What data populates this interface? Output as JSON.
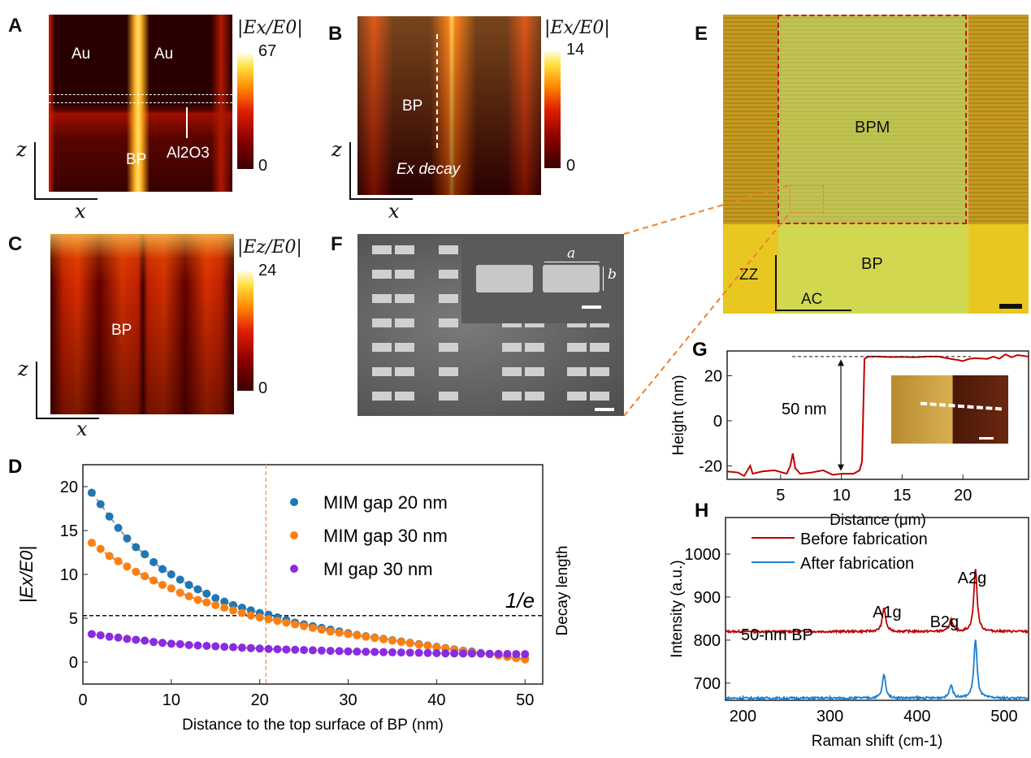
{
  "panels": {
    "A": {
      "letter": "A",
      "colorbar_title": "|Ex/E0|",
      "colorbar_max": "67",
      "colorbar_min": "0",
      "labels": {
        "au_left": "Au",
        "au_right": "Au",
        "bp": "BP",
        "oxide": "Al2O3"
      },
      "axis_z": "z",
      "axis_x": "x"
    },
    "B": {
      "letter": "B",
      "colorbar_title": "|Ex/E0|",
      "colorbar_max": "14",
      "colorbar_min": "0",
      "labels": {
        "bp": "BP",
        "decay": "Ex decay"
      },
      "axis_z": "z",
      "axis_x": "x"
    },
    "C": {
      "letter": "C",
      "colorbar_title": "|Ez/E0|",
      "colorbar_max": "24",
      "colorbar_min": "0",
      "labels": {
        "bp": "BP"
      },
      "axis_z": "z",
      "axis_x": "x"
    },
    "E": {
      "letter": "E",
      "labels": {
        "bpm": "BPM",
        "bp": "BP",
        "zz": "ZZ",
        "ac": "AC"
      }
    },
    "F": {
      "letter": "F",
      "labels": {
        "a": "a",
        "b": "b"
      }
    },
    "D": {
      "letter": "D"
    },
    "G": {
      "letter": "G"
    },
    "H": {
      "letter": "H"
    }
  },
  "colors": {
    "blue": "#1f77b4",
    "orange": "#ff7f0e",
    "purple": "#8a2be2",
    "red": "#c00000",
    "raman_blue": "#1a7fd0",
    "dashed_orange": "#f08030",
    "dashed_red": "#d01020"
  },
  "chart_data": [
    {
      "id": "D",
      "type": "scatter",
      "xlabel": "Distance to the top surface of BP (nm)",
      "ylabel": "|Ex/E0|",
      "right_label": "Decay length",
      "xlim": [
        0,
        52
      ],
      "ylim": [
        -2.5,
        22.5
      ],
      "xticks": [
        0,
        10,
        20,
        30,
        40,
        50
      ],
      "yticks": [
        0,
        5,
        10,
        15,
        20
      ],
      "legend_position": "top-right",
      "annotation": "1/e",
      "hline": 5.3,
      "vline": 20.7,
      "x": [
        1,
        2,
        3,
        4,
        5,
        6,
        7,
        8,
        9,
        10,
        11,
        12,
        13,
        14,
        15,
        16,
        17,
        18,
        19,
        20,
        21,
        22,
        23,
        24,
        25,
        26,
        27,
        28,
        29,
        30,
        31,
        32,
        33,
        34,
        35,
        36,
        37,
        38,
        39,
        40,
        41,
        42,
        43,
        44,
        45,
        46,
        47,
        48,
        49,
        50
      ],
      "series": [
        {
          "name": "MIM gap 20 nm",
          "color": "#1f77b4",
          "values": [
            19.3,
            18,
            16.6,
            15.3,
            14.1,
            13.1,
            12.3,
            11.4,
            10.6,
            10,
            9.4,
            8.8,
            8.3,
            7.8,
            7.3,
            6.9,
            6.5,
            6.2,
            5.9,
            5.6,
            5.4,
            5.1,
            4.8,
            4.5,
            4.3,
            4.1,
            3.9,
            3.7,
            3.5,
            3.3,
            3.1,
            2.95,
            2.8,
            2.65,
            2.5,
            2.35,
            2.2,
            2.05,
            1.9,
            1.75,
            1.6,
            1.45,
            1.3,
            1.2,
            1.05,
            0.95,
            0.8,
            0.65,
            0.5,
            0.4
          ]
        },
        {
          "name": "MIM gap 30 nm",
          "color": "#ff7f0e",
          "values": [
            13.6,
            12.9,
            12.1,
            11.5,
            10.9,
            10.3,
            9.8,
            9.3,
            8.8,
            8.4,
            7.9,
            7.5,
            7.1,
            6.8,
            6.5,
            6.2,
            5.9,
            5.6,
            5.3,
            5.1,
            4.9,
            4.7,
            4.5,
            4.3,
            4.1,
            3.9,
            3.7,
            3.5,
            3.35,
            3.2,
            3.05,
            2.9,
            2.75,
            2.6,
            2.45,
            2.3,
            2.15,
            2.0,
            1.85,
            1.7,
            1.55,
            1.4,
            1.25,
            1.1,
            1.0,
            0.9,
            0.75,
            0.6,
            0.45,
            0.3
          ]
        },
        {
          "name": "MI gap 30 nm",
          "color": "#8a2be2",
          "values": [
            3.2,
            3.05,
            2.9,
            2.8,
            2.65,
            2.55,
            2.45,
            2.3,
            2.2,
            2.1,
            2.05,
            1.95,
            1.9,
            1.85,
            1.8,
            1.75,
            1.7,
            1.65,
            1.6,
            1.55,
            1.5,
            1.47,
            1.44,
            1.41,
            1.38,
            1.35,
            1.32,
            1.29,
            1.26,
            1.23,
            1.2,
            1.18,
            1.16,
            1.14,
            1.12,
            1.1,
            1.08,
            1.06,
            1.04,
            1.02,
            1.0,
            0.99,
            0.98,
            0.97,
            0.96,
            0.95,
            0.94,
            0.93,
            0.92,
            0.91
          ]
        }
      ]
    },
    {
      "id": "G",
      "type": "line",
      "xlabel": "Distance (μm)",
      "ylabel": "Height (nm)",
      "xlim": [
        0.6,
        25.4
      ],
      "ylim": [
        -26,
        31
      ],
      "xticks": [
        5,
        10,
        15,
        20
      ],
      "yticks": [
        -20,
        0,
        20
      ],
      "annotation": "50 nm",
      "x": [
        0.6,
        1.5,
        2.0,
        2.5,
        2.7,
        3.5,
        4.5,
        5.5,
        5.8,
        6.0,
        6.2,
        6.6,
        7.5,
        8.5,
        9.3,
        10.0,
        11.0,
        11.5,
        11.7,
        11.9,
        12.2,
        13.0,
        14.0,
        15.0,
        16.0,
        17.0,
        18.0,
        19.0,
        19.6,
        20.0,
        20.5,
        21.0,
        22.0,
        22.5,
        23.0,
        23.5,
        24.0,
        24.5,
        25.4
      ],
      "values": [
        -22.5,
        -23,
        -24.5,
        -20,
        -23.5,
        -22.5,
        -22,
        -23.5,
        -20,
        -14.5,
        -21,
        -23.5,
        -23,
        -22,
        -24,
        -23.5,
        -23.5,
        -22,
        -18,
        27.5,
        28.5,
        28.5,
        28.3,
        28.4,
        28.2,
        28.5,
        28.5,
        27.5,
        27,
        26.5,
        27.5,
        27.8,
        27.5,
        28.5,
        27.6,
        29.5,
        28.2,
        29.2,
        28.5
      ]
    },
    {
      "id": "H",
      "type": "line",
      "xlabel": "Raman shift (cm-1)",
      "ylabel": "Intensity (a.u.)",
      "xlim": [
        180,
        528
      ],
      "ylim": [
        660,
        1085
      ],
      "xticks": [
        200,
        300,
        400,
        500
      ],
      "yticks": [
        700,
        800,
        900,
        1000
      ],
      "legend_position": "top-left",
      "annotations": [
        "A1g",
        "B2g",
        "A2g",
        "50-nm BP"
      ],
      "series": [
        {
          "name": "Before fabrication",
          "color": "#c00000",
          "baseline": 820,
          "peaks": [
            {
              "x": 362,
              "y": 876
            },
            {
              "x": 439,
              "y": 848
            },
            {
              "x": 467,
              "y": 968
            }
          ]
        },
        {
          "name": "After fabrication",
          "color": "#1a7fd0",
          "baseline": 665,
          "peaks": [
            {
              "x": 362,
              "y": 720
            },
            {
              "x": 439,
              "y": 697
            },
            {
              "x": 467,
              "y": 801
            }
          ]
        }
      ]
    }
  ]
}
